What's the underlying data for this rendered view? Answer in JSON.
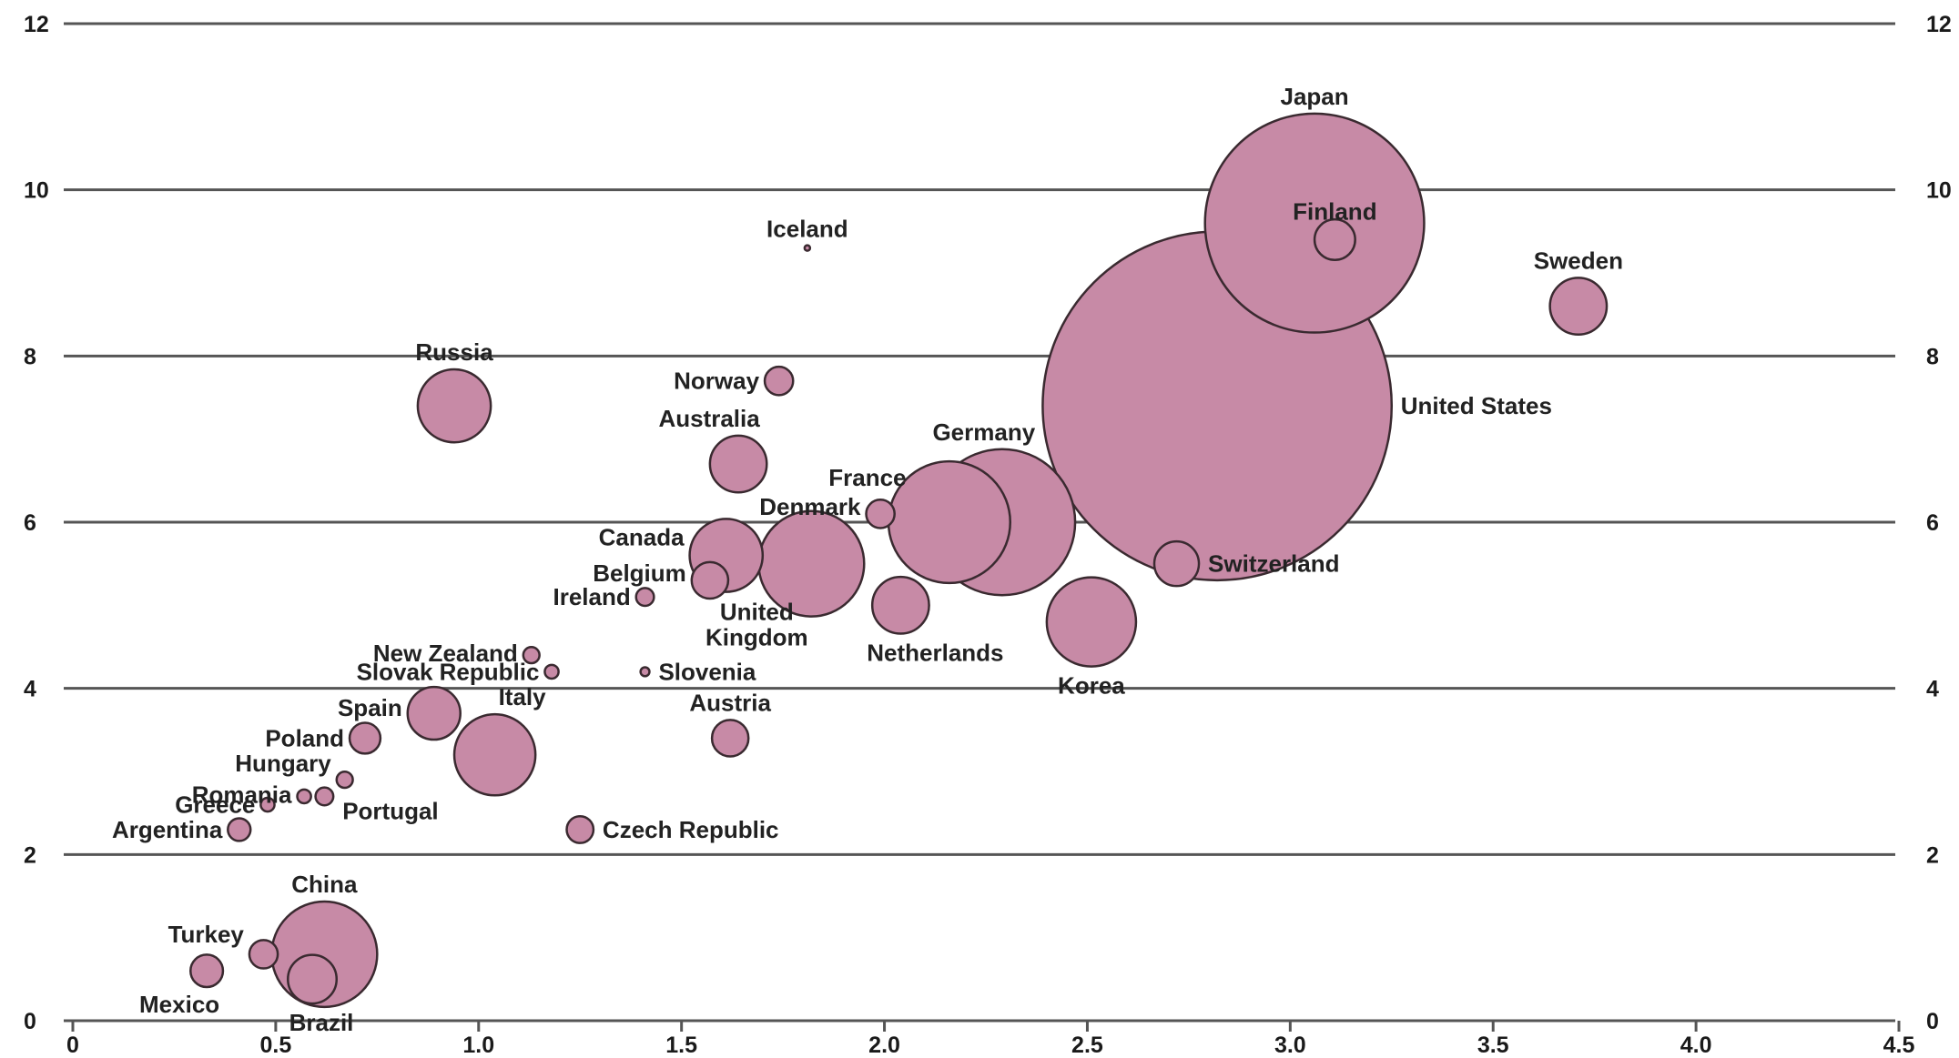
{
  "chart_data": {
    "type": "scatter",
    "title": "",
    "xlabel": "",
    "ylabel": "",
    "xlim": [
      0,
      4.5
    ],
    "ylim": [
      0,
      12
    ],
    "x_ticks": [
      "0",
      "0.5",
      "1.0",
      "1.5",
      "2.0",
      "2.5",
      "3.0",
      "3.5",
      "4.0",
      "4.5"
    ],
    "y_ticks": [
      "0",
      "2",
      "4",
      "6",
      "8",
      "10",
      "12"
    ],
    "grid": "horizontal",
    "bubble_color": "#c78aa6",
    "bubble_stroke": "#3a2a30",
    "points": [
      {
        "name": "Japan",
        "x": 3.06,
        "y": 9.6,
        "r": 0.27
      },
      {
        "name": "Finland",
        "x": 3.11,
        "y": 9.4,
        "r": 0.05
      },
      {
        "name": "Iceland",
        "x": 1.81,
        "y": 9.3,
        "r": 0.005
      },
      {
        "name": "Sweden",
        "x": 3.71,
        "y": 8.6,
        "r": 0.07
      },
      {
        "name": "United States",
        "x": 2.82,
        "y": 7.4,
        "r": 0.43
      },
      {
        "name": "Russia",
        "x": 0.94,
        "y": 7.4,
        "r": 0.09
      },
      {
        "name": "Norway",
        "x": 1.74,
        "y": 7.7,
        "r": 0.035
      },
      {
        "name": "Australia",
        "x": 1.64,
        "y": 6.7,
        "r": 0.07
      },
      {
        "name": "France",
        "x": 2.16,
        "y": 6.0,
        "r": 0.15
      },
      {
        "name": "Germany",
        "x": 2.29,
        "y": 6.0,
        "r": 0.18
      },
      {
        "name": "Denmark",
        "x": 1.99,
        "y": 6.1,
        "r": 0.035
      },
      {
        "name": "Canada",
        "x": 1.61,
        "y": 5.6,
        "r": 0.09
      },
      {
        "name": "United Kingdom",
        "x": 1.82,
        "y": 5.5,
        "r": 0.13
      },
      {
        "name": "Belgium",
        "x": 1.57,
        "y": 5.3,
        "r": 0.045
      },
      {
        "name": "Ireland",
        "x": 1.41,
        "y": 5.1,
        "r": 0.022
      },
      {
        "name": "Netherlands",
        "x": 2.04,
        "y": 5.0,
        "r": 0.07
      },
      {
        "name": "Switzerland",
        "x": 2.72,
        "y": 5.5,
        "r": 0.055
      },
      {
        "name": "Korea",
        "x": 2.51,
        "y": 4.8,
        "r": 0.11
      },
      {
        "name": "New Zealand",
        "x": 1.13,
        "y": 4.4,
        "r": 0.02
      },
      {
        "name": "Slovak Republic",
        "x": 1.18,
        "y": 4.2,
        "r": 0.017
      },
      {
        "name": "Slovenia",
        "x": 1.41,
        "y": 4.2,
        "r": 0.011
      },
      {
        "name": "Spain",
        "x": 0.89,
        "y": 3.7,
        "r": 0.065
      },
      {
        "name": "Italy",
        "x": 1.04,
        "y": 3.2,
        "r": 0.1
      },
      {
        "name": "Austria",
        "x": 1.62,
        "y": 3.4,
        "r": 0.045
      },
      {
        "name": "Poland",
        "x": 0.72,
        "y": 3.4,
        "r": 0.038
      },
      {
        "name": "Hungary",
        "x": 0.67,
        "y": 2.9,
        "r": 0.02
      },
      {
        "name": "Romania",
        "x": 0.57,
        "y": 2.7,
        "r": 0.017
      },
      {
        "name": "Portugal",
        "x": 0.62,
        "y": 2.7,
        "r": 0.022
      },
      {
        "name": "Greece",
        "x": 0.48,
        "y": 2.6,
        "r": 0.017
      },
      {
        "name": "Argentina",
        "x": 0.41,
        "y": 2.3,
        "r": 0.028
      },
      {
        "name": "Czech Republic",
        "x": 1.25,
        "y": 2.3,
        "r": 0.033
      },
      {
        "name": "China",
        "x": 0.62,
        "y": 0.8,
        "r": 0.13
      },
      {
        "name": "Turkey",
        "x": 0.47,
        "y": 0.8,
        "r": 0.035
      },
      {
        "name": "Mexico",
        "x": 0.33,
        "y": 0.6,
        "r": 0.04
      },
      {
        "name": "Brazil",
        "x": 0.59,
        "y": 0.5,
        "r": 0.06
      }
    ]
  }
}
